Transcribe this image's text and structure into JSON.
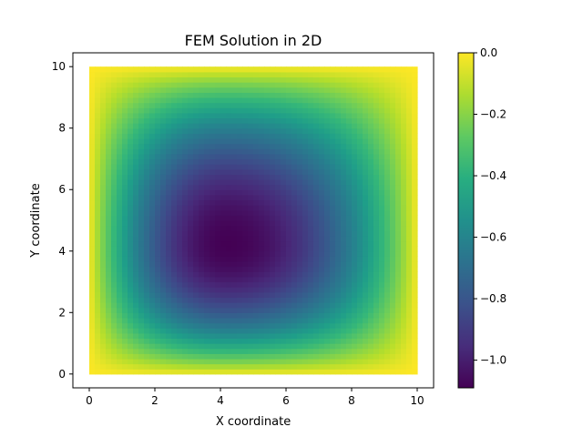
{
  "chart_data": {
    "type": "heatmap",
    "title": "FEM Solution in 2D",
    "xlabel": "X coordinate",
    "ylabel": "Y coordinate",
    "xlim": [
      -0.5,
      10.5
    ],
    "ylim": [
      -0.45,
      10.45
    ],
    "x_ticks": [
      0,
      2,
      4,
      6,
      8,
      10
    ],
    "y_ticks": [
      0,
      2,
      4,
      6,
      8,
      10
    ],
    "x_tick_labels": [
      "0",
      "2",
      "4",
      "6",
      "8",
      "10"
    ],
    "y_tick_labels": [
      "0",
      "2",
      "4",
      "6",
      "8",
      "10"
    ],
    "domain": {
      "x": [
        0,
        10
      ],
      "y": [
        0,
        10
      ]
    },
    "value_range": [
      -1.09,
      0.0
    ],
    "minimum": {
      "x": 4.2,
      "y": 4.2,
      "value": -1.09
    },
    "boundary_value": 0.0,
    "colormap": "viridis",
    "grid": false,
    "colorbar": {
      "ticks": [
        0.0,
        -0.2,
        -0.4,
        -0.6,
        -0.8,
        -1.0
      ],
      "tick_labels": [
        "0.0",
        "−0.2",
        "−0.4",
        "−0.6",
        "−0.8",
        "−1.0"
      ],
      "range": [
        -1.09,
        0.0
      ]
    }
  }
}
